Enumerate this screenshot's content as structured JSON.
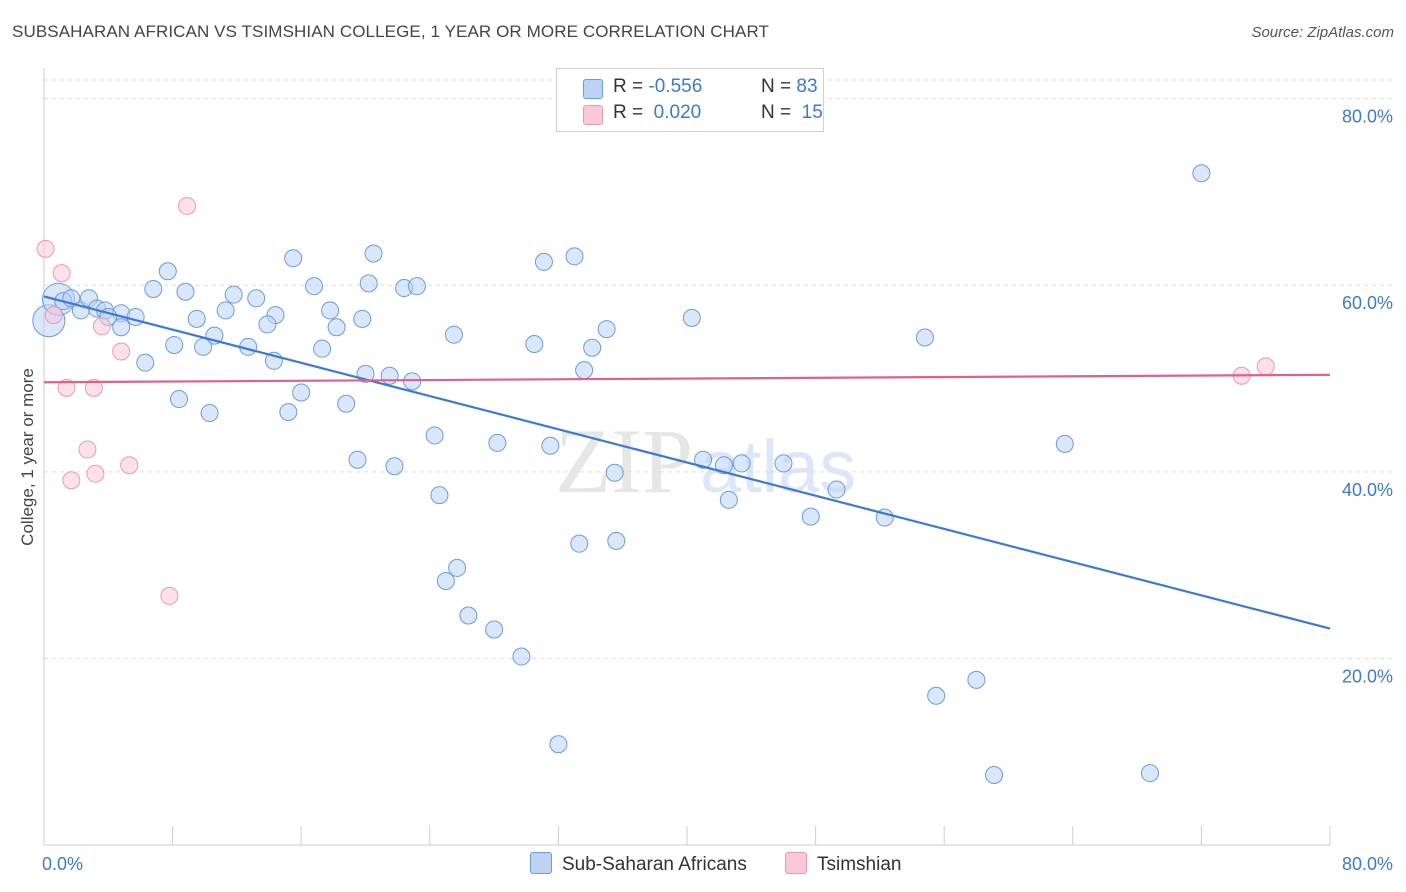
{
  "title": "SUBSAHARAN AFRICAN VS TSIMSHIAN COLLEGE, 1 YEAR OR MORE CORRELATION CHART",
  "source": "Source: ZipAtlas.com",
  "watermark": {
    "zip": "ZIP",
    "atlas": "atlas"
  },
  "legend": {
    "rows": [
      {
        "r_label": "R =",
        "r_value": "-0.556",
        "n_label": "N =",
        "n_value": "83",
        "fill": "#bcd3f5",
        "stroke": "#6a9be0"
      },
      {
        "r_label": "R =",
        "r_value": "0.020",
        "n_label": "N =",
        "n_value": "15",
        "fill": "#f9c9d8",
        "stroke": "#e99ab3"
      }
    ]
  },
  "bottom_legend": [
    {
      "label": "Sub-Saharan Africans",
      "fill": "#bcd3f5",
      "stroke": "#6a9be0"
    },
    {
      "label": "Tsimshian",
      "fill": "#f9c9d8",
      "stroke": "#e99ab3"
    }
  ],
  "chart_data": {
    "type": "scatter",
    "title": "SUBSAHARAN AFRICAN VS TSIMSHIAN COLLEGE, 1 YEAR OR MORE CORRELATION CHART",
    "xlabel": "",
    "ylabel": "College, 1 year or more",
    "xlim": [
      0,
      80
    ],
    "ylim": [
      0,
      82
    ],
    "x_tick_labels": [
      {
        "value": 0,
        "label": "0.0%"
      },
      {
        "value": 80,
        "label": "80.0%"
      }
    ],
    "y_tick_labels": [
      {
        "value": 20,
        "label": "20.0%"
      },
      {
        "value": 40,
        "label": "40.0%"
      },
      {
        "value": 60,
        "label": "60.0%"
      },
      {
        "value": 80,
        "label": "80.0%"
      }
    ],
    "colors": {
      "blue": "#3c78d8",
      "pink": "#e0608a",
      "grid": "#dddddd"
    },
    "series": [
      {
        "name": "Sub-Saharan Africans",
        "R": -0.556,
        "N": 83,
        "trend": {
          "x": [
            0,
            80
          ],
          "y": [
            58.8,
            23.2
          ]
        },
        "points": [
          {
            "x": 0.3,
            "y": 56.2,
            "big": true
          },
          {
            "x": 0.9,
            "y": 58.5,
            "big": true
          },
          {
            "x": 1.2,
            "y": 58.3
          },
          {
            "x": 1.7,
            "y": 58.6
          },
          {
            "x": 2.3,
            "y": 57.3
          },
          {
            "x": 2.8,
            "y": 58.6
          },
          {
            "x": 3.3,
            "y": 57.5
          },
          {
            "x": 3.8,
            "y": 57.3
          },
          {
            "x": 4.8,
            "y": 57.0
          },
          {
            "x": 4.0,
            "y": 56.6
          },
          {
            "x": 5.7,
            "y": 56.6
          },
          {
            "x": 4.8,
            "y": 55.5
          },
          {
            "x": 6.3,
            "y": 51.7
          },
          {
            "x": 7.7,
            "y": 61.5
          },
          {
            "x": 6.8,
            "y": 59.6
          },
          {
            "x": 8.8,
            "y": 59.3
          },
          {
            "x": 9.5,
            "y": 56.4
          },
          {
            "x": 11.3,
            "y": 57.3
          },
          {
            "x": 11.8,
            "y": 59.0
          },
          {
            "x": 13.2,
            "y": 58.6
          },
          {
            "x": 12.7,
            "y": 53.4
          },
          {
            "x": 10.6,
            "y": 54.6
          },
          {
            "x": 9.9,
            "y": 53.4
          },
          {
            "x": 8.1,
            "y": 53.6
          },
          {
            "x": 8.4,
            "y": 47.8
          },
          {
            "x": 10.3,
            "y": 46.3
          },
          {
            "x": 14.4,
            "y": 56.8
          },
          {
            "x": 13.9,
            "y": 55.8
          },
          {
            "x": 14.3,
            "y": 51.9
          },
          {
            "x": 15.5,
            "y": 62.9
          },
          {
            "x": 16.0,
            "y": 48.5
          },
          {
            "x": 15.2,
            "y": 46.4
          },
          {
            "x": 16.8,
            "y": 59.9
          },
          {
            "x": 17.8,
            "y": 57.3
          },
          {
            "x": 18.2,
            "y": 55.5
          },
          {
            "x": 17.3,
            "y": 53.2
          },
          {
            "x": 18.8,
            "y": 47.3
          },
          {
            "x": 19.8,
            "y": 56.4
          },
          {
            "x": 20.5,
            "y": 63.4
          },
          {
            "x": 20.2,
            "y": 60.2
          },
          {
            "x": 21.5,
            "y": 50.3
          },
          {
            "x": 22.4,
            "y": 59.7
          },
          {
            "x": 23.2,
            "y": 59.9
          },
          {
            "x": 22.9,
            "y": 49.7
          },
          {
            "x": 21.8,
            "y": 40.6
          },
          {
            "x": 19.5,
            "y": 41.3
          },
          {
            "x": 24.3,
            "y": 43.9
          },
          {
            "x": 24.6,
            "y": 37.5
          },
          {
            "x": 25.5,
            "y": 54.7
          },
          {
            "x": 25.0,
            "y": 28.3
          },
          {
            "x": 25.7,
            "y": 29.7
          },
          {
            "x": 26.4,
            "y": 24.6
          },
          {
            "x": 28.2,
            "y": 43.1
          },
          {
            "x": 28.0,
            "y": 23.1
          },
          {
            "x": 29.7,
            "y": 20.2
          },
          {
            "x": 30.5,
            "y": 53.7
          },
          {
            "x": 31.1,
            "y": 62.5
          },
          {
            "x": 31.5,
            "y": 42.8
          },
          {
            "x": 32.0,
            "y": 10.8
          },
          {
            "x": 33.0,
            "y": 63.1
          },
          {
            "x": 33.6,
            "y": 50.9
          },
          {
            "x": 34.1,
            "y": 53.3
          },
          {
            "x": 35.0,
            "y": 55.3
          },
          {
            "x": 33.3,
            "y": 32.3
          },
          {
            "x": 35.6,
            "y": 32.6
          },
          {
            "x": 35.5,
            "y": 39.9
          },
          {
            "x": 40.3,
            "y": 56.5
          },
          {
            "x": 41.0,
            "y": 41.3
          },
          {
            "x": 42.3,
            "y": 40.7
          },
          {
            "x": 42.6,
            "y": 37.0
          },
          {
            "x": 43.4,
            "y": 40.9
          },
          {
            "x": 46.0,
            "y": 40.9
          },
          {
            "x": 47.7,
            "y": 35.2
          },
          {
            "x": 49.3,
            "y": 38.1
          },
          {
            "x": 52.3,
            "y": 35.1
          },
          {
            "x": 54.8,
            "y": 54.4
          },
          {
            "x": 55.5,
            "y": 16.0
          },
          {
            "x": 58.0,
            "y": 17.7
          },
          {
            "x": 59.1,
            "y": 7.5
          },
          {
            "x": 63.5,
            "y": 43.0
          },
          {
            "x": 68.8,
            "y": 7.7
          },
          {
            "x": 72.0,
            "y": 72.0
          },
          {
            "x": 20.0,
            "y": 50.5
          }
        ]
      },
      {
        "name": "Tsimshian",
        "R": 0.02,
        "N": 15,
        "trend": {
          "x": [
            0,
            80
          ],
          "y": [
            49.6,
            50.4
          ]
        },
        "points": [
          {
            "x": 0.1,
            "y": 63.9
          },
          {
            "x": 1.1,
            "y": 61.3
          },
          {
            "x": 0.6,
            "y": 56.8
          },
          {
            "x": 8.9,
            "y": 68.5
          },
          {
            "x": 3.6,
            "y": 55.6
          },
          {
            "x": 4.8,
            "y": 52.9
          },
          {
            "x": 1.4,
            "y": 49.0
          },
          {
            "x": 3.1,
            "y": 49.0
          },
          {
            "x": 2.7,
            "y": 42.4
          },
          {
            "x": 3.2,
            "y": 39.8
          },
          {
            "x": 1.7,
            "y": 39.1
          },
          {
            "x": 5.3,
            "y": 40.7
          },
          {
            "x": 7.8,
            "y": 26.7
          },
          {
            "x": 74.5,
            "y": 50.3
          },
          {
            "x": 76.0,
            "y": 51.3
          }
        ]
      }
    ]
  }
}
